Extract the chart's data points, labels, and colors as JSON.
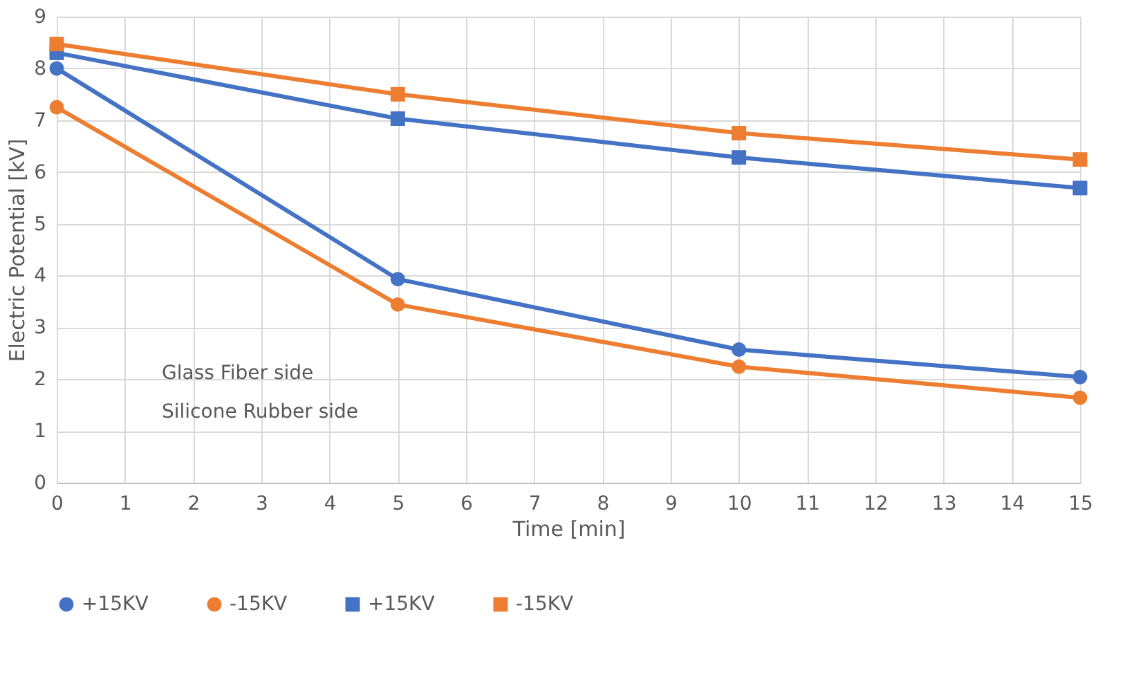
{
  "chart_data": {
    "type": "line",
    "xlabel": "Time [min]",
    "ylabel": "Electric Potential [kV]",
    "x": [
      0,
      5,
      10,
      15
    ],
    "series": [
      {
        "name": "+15KV",
        "color": "#4472c4",
        "marker": "circle",
        "values": [
          8.0,
          3.93,
          2.57,
          2.04
        ]
      },
      {
        "name": "-15KV",
        "color": "#ed7d31",
        "marker": "circle",
        "values": [
          7.25,
          3.44,
          2.24,
          1.64
        ]
      },
      {
        "name": "+15KV",
        "color": "#4472c4",
        "marker": "square",
        "values": [
          8.3,
          7.03,
          6.28,
          5.69
        ]
      },
      {
        "name": "-15KV",
        "color": "#ed7d31",
        "marker": "square",
        "values": [
          8.47,
          7.5,
          6.75,
          6.24
        ]
      }
    ],
    "xlim": [
      0,
      15
    ],
    "xticks": [
      0,
      1,
      2,
      3,
      4,
      5,
      6,
      7,
      8,
      9,
      10,
      11,
      12,
      13,
      14,
      15
    ],
    "ylim": [
      0,
      9
    ],
    "yticks": [
      0,
      1,
      2,
      3,
      4,
      5,
      6,
      7,
      8,
      9
    ],
    "grid": true,
    "legend": "bottom",
    "line_style": "solid",
    "annotations": [
      "Glass Fiber side",
      "Silicone Rubber side"
    ]
  }
}
